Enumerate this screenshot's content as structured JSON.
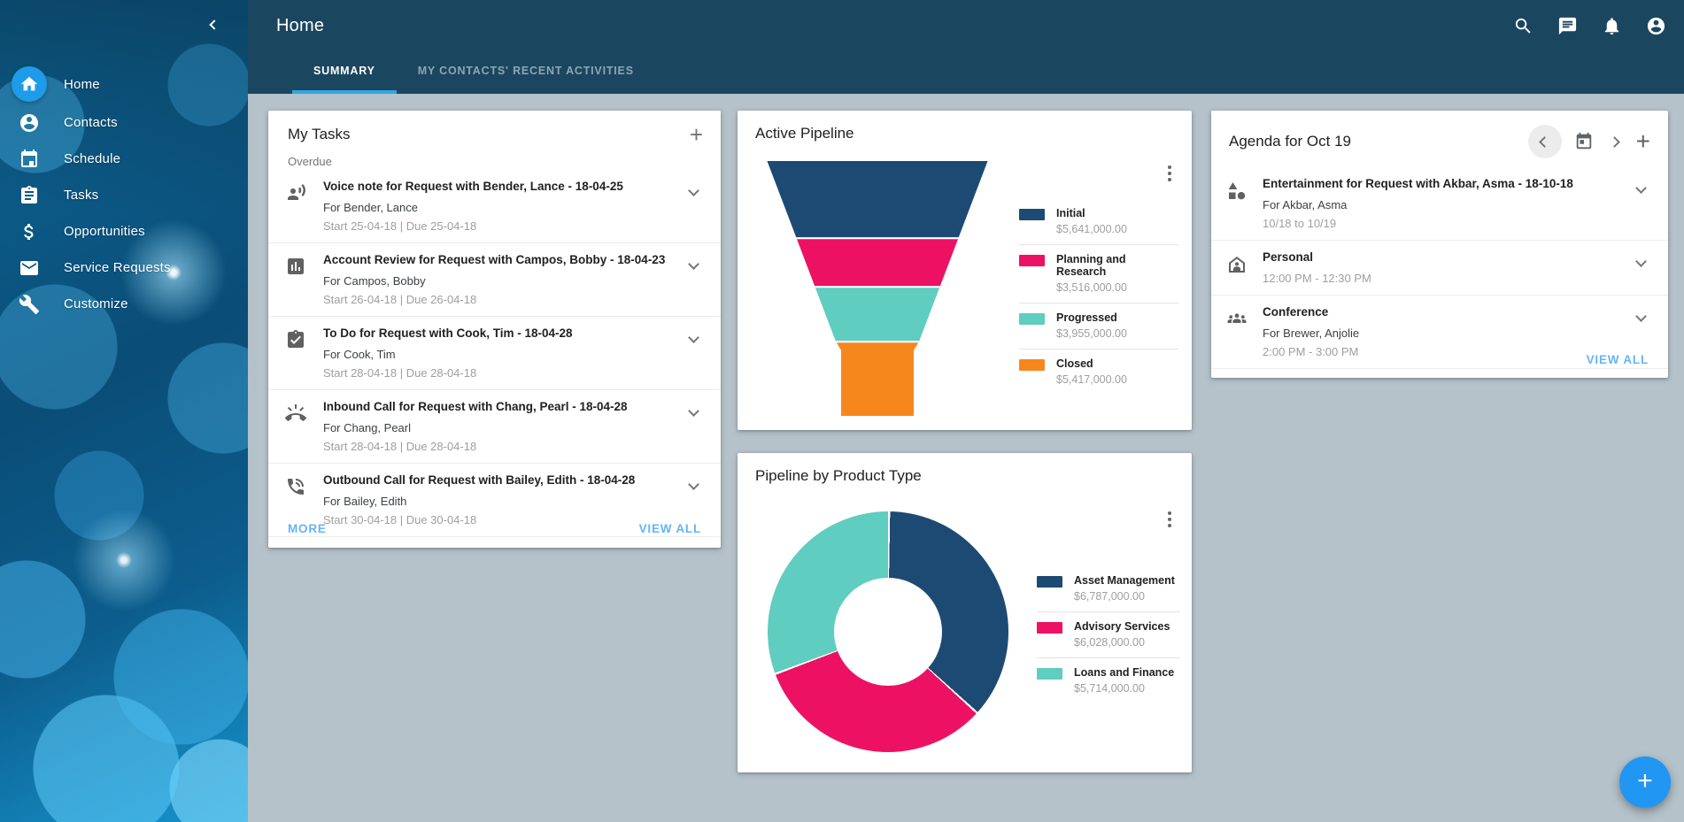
{
  "app_title": "Home",
  "topbar": {
    "icons": [
      "search-icon",
      "chat-icon",
      "notifications-icon",
      "account-icon"
    ]
  },
  "tabs": [
    {
      "label": "SUMMARY",
      "active": true
    },
    {
      "label": "MY CONTACTS' RECENT ACTIVITIES",
      "active": false
    }
  ],
  "sidebar": {
    "items": [
      {
        "label": "Home",
        "icon": "home-icon",
        "active": true
      },
      {
        "label": "Contacts",
        "icon": "contacts-icon",
        "active": false
      },
      {
        "label": "Schedule",
        "icon": "calendar-icon",
        "active": false
      },
      {
        "label": "Tasks",
        "icon": "clipboard-icon",
        "active": false
      },
      {
        "label": "Opportunities",
        "icon": "dollar-icon",
        "active": false
      },
      {
        "label": "Service Requests",
        "icon": "envelope-icon",
        "active": false
      },
      {
        "label": "Customize",
        "icon": "wrench-icon",
        "active": false
      }
    ]
  },
  "tasks_card": {
    "title": "My Tasks",
    "section_label": "Overdue",
    "items": [
      {
        "icon": "voice-note-icon",
        "title": "Voice note for Request with Bender, Lance - 18-04-25",
        "subtitle": "For Bender, Lance",
        "dates": "Start 25-04-18 | Due 25-04-18"
      },
      {
        "icon": "account-review-icon",
        "title": "Account Review for Request with Campos, Bobby - 18-04-23",
        "subtitle": "For Campos, Bobby",
        "dates": "Start 26-04-18 | Due 26-04-18"
      },
      {
        "icon": "todo-icon",
        "title": "To Do for Request with Cook, Tim - 18-04-28",
        "subtitle": "For Cook, Tim",
        "dates": "Start 28-04-18 | Due 28-04-18"
      },
      {
        "icon": "inbound-call-icon",
        "title": "Inbound Call for Request with Chang, Pearl - 18-04-28",
        "subtitle": "For Chang, Pearl",
        "dates": "Start 28-04-18 | Due 28-04-18"
      },
      {
        "icon": "outbound-call-icon",
        "title": "Outbound Call for Request with Bailey, Edith - 18-04-28",
        "subtitle": "For Bailey, Edith",
        "dates": "Start 30-04-18 | Due 30-04-18"
      }
    ],
    "more_label": "MORE",
    "view_all_label": "VIEW ALL"
  },
  "agenda_card": {
    "title": "Agenda for Oct 19",
    "items": [
      {
        "icon": "shapes-icon",
        "title": "Entertainment for Request with Akbar, Asma - 18-10-18",
        "subtitle": "For Akbar, Asma",
        "time": "10/18 to 10/19"
      },
      {
        "icon": "home-person-icon",
        "title": "Personal",
        "time": "12:00 PM - 12:30 PM"
      },
      {
        "icon": "group-icon",
        "title": "Conference",
        "subtitle": "For Brewer, Anjolie",
        "time": "2:00 PM - 3:00 PM"
      }
    ],
    "view_all_label": "VIEW ALL"
  },
  "chart_data": [
    {
      "type": "funnel",
      "title": "Active Pipeline",
      "categories": [
        "Initial",
        "Planning and Research",
        "Progressed",
        "Closed"
      ],
      "values": [
        5641000,
        3516000,
        3955000,
        5417000
      ],
      "value_labels": [
        "$5,641,000.00",
        "$3,516,000.00",
        "$3,955,000.00",
        "$5,417,000.00"
      ],
      "colors": [
        "#1d4a73",
        "#ed1164",
        "#5fcdbf",
        "#f6871d"
      ],
      "legend_position": "right"
    },
    {
      "type": "donut",
      "title": "Pipeline by Product Type",
      "categories": [
        "Asset Management",
        "Advisory Services",
        "Loans and Finance"
      ],
      "values": [
        6787000,
        6028000,
        5714000
      ],
      "value_labels": [
        "$6,787,000.00",
        "$6,028,000.00",
        "$5,714,000.00"
      ],
      "colors": [
        "#1d4a73",
        "#ed1164",
        "#5fcdbf"
      ],
      "legend_position": "right"
    }
  ],
  "colors": {
    "header": "#1a4660",
    "accent_blue": "#2196f3",
    "link_blue": "#64b5f6",
    "tab_underline": "#33a7e0",
    "page_background": "#b5c2ca"
  }
}
